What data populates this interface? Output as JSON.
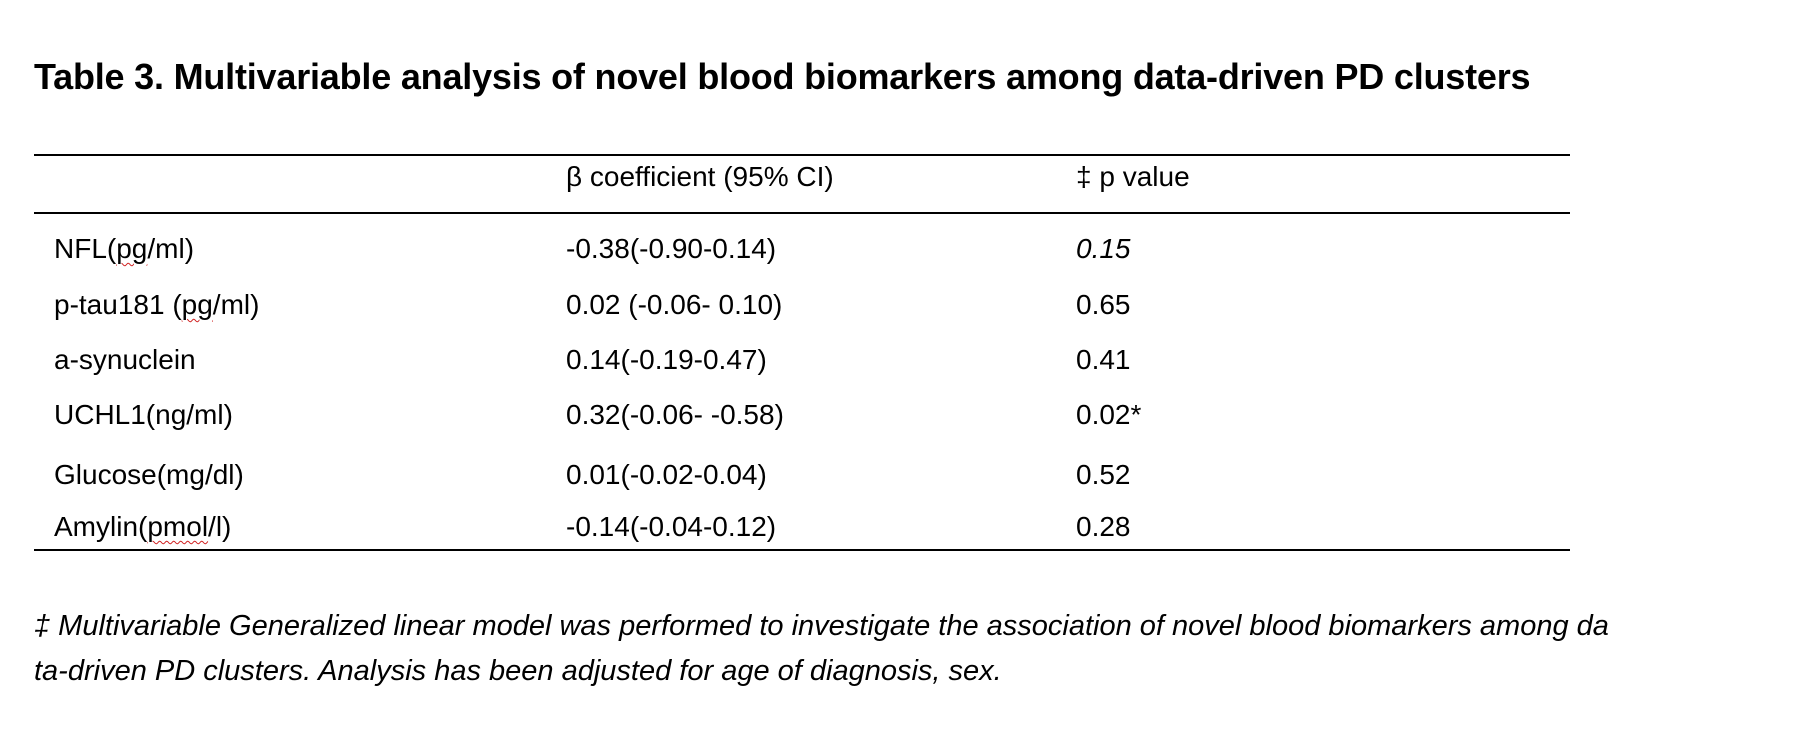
{
  "title": "Table 3. Multivariable analysis of novel blood biomarkers among data-driven PD clusters",
  "table": {
    "headers": [
      "",
      "β coefficient (95% CI)",
      "‡ p value"
    ],
    "rows": [
      {
        "label_pre": "NFL(",
        "label_flag": "pg",
        "label_post": "/ml)",
        "coef": "-0.38(-0.90-0.14)",
        "p": "0.15"
      },
      {
        "label_pre": "p-tau181 (",
        "label_flag": "pg",
        "label_post": "/ml)",
        "coef": "0.02 (-0.06- 0.10)",
        "p": "0.65"
      },
      {
        "label": "a-synuclein",
        "coef": "0.14(-0.19-0.47)",
        "p": "0.41"
      },
      {
        "label": "UCHL1(ng/ml)",
        "coef": "0.32(-0.06- -0.58)",
        "p": "0.02*"
      },
      {
        "label": "Glucose(mg/dl)",
        "coef": "0.01(-0.02-0.04)",
        "p": "0.52"
      },
      {
        "label_pre": "Amylin(",
        "label_flag": "pmol",
        "label_post": "/l)",
        "coef": "-0.14(-0.04-0.12)",
        "p": "0.28"
      }
    ]
  },
  "footnote": {
    "line1": "‡ Multivariable Generalized linear model was performed to investigate the association of novel blood biomarkers among da",
    "line2": "ta-driven PD clusters.  Analysis has been adjusted for age of diagnosis, sex."
  }
}
